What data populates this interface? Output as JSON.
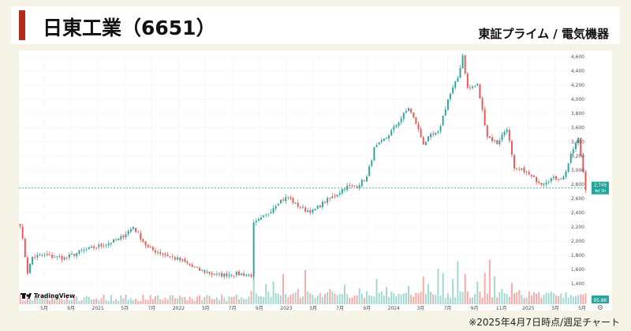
{
  "header": {
    "title": "日東工業（6651）",
    "market": "東証プライム / 電気機器"
  },
  "footnote": "※2025年4月7日時点/週足チャート",
  "chart_data": {
    "type": "candlestick",
    "interval": "weekly",
    "ylim": [
      1400,
      4600
    ],
    "y_ticks": [
      "4,600",
      "4,400",
      "4,200",
      "4,000",
      "3,800",
      "3,600",
      "3,400",
      "3,200",
      "3,000",
      "2,800",
      "2,600",
      "2,400",
      "2,200",
      "2,000",
      "1,800",
      "1,600",
      "1,400"
    ],
    "x_ticks": [
      "5月",
      "9月",
      "2021",
      "5月",
      "7月",
      "2022",
      "3月",
      "7月",
      "9月",
      "2023",
      "3月",
      "7月",
      "9月",
      "2024",
      "3月",
      "7月",
      "9月",
      "11月",
      "2025",
      "3月",
      "5月"
    ],
    "last_price": "2,749",
    "last_price_sub": "4d 3h",
    "volume_label": "95.8K",
    "watermark": "TradingView",
    "colors": {
      "up": "#26a69a",
      "down": "#ef5350",
      "up_volume": "#9fd8cf",
      "down_volume": "#f6a9a6"
    },
    "anchors": [
      [
        0,
        2240
      ],
      [
        3,
        1560
      ],
      [
        5,
        1780
      ],
      [
        10,
        1800
      ],
      [
        18,
        1760
      ],
      [
        25,
        1860
      ],
      [
        33,
        1940
      ],
      [
        40,
        2020
      ],
      [
        46,
        2200
      ],
      [
        52,
        1900
      ],
      [
        58,
        1820
      ],
      [
        66,
        1720
      ],
      [
        72,
        1600
      ],
      [
        80,
        1520
      ],
      [
        88,
        1540
      ],
      [
        94,
        1520
      ],
      [
        95,
        2240
      ],
      [
        100,
        2360
      ],
      [
        105,
        2560
      ],
      [
        109,
        2620
      ],
      [
        112,
        2520
      ],
      [
        116,
        2440
      ],
      [
        119,
        2420
      ],
      [
        124,
        2560
      ],
      [
        128,
        2640
      ],
      [
        132,
        2760
      ],
      [
        137,
        2780
      ],
      [
        141,
        2900
      ],
      [
        144,
        3300
      ],
      [
        149,
        3460
      ],
      [
        153,
        3640
      ],
      [
        158,
        3880
      ],
      [
        161,
        3660
      ],
      [
        164,
        3380
      ],
      [
        167,
        3480
      ],
      [
        170,
        3520
      ],
      [
        174,
        4000
      ],
      [
        178,
        4300
      ],
      [
        180,
        4620
      ],
      [
        182,
        4150
      ],
      [
        186,
        4200
      ],
      [
        190,
        3480
      ],
      [
        194,
        3380
      ],
      [
        198,
        3600
      ],
      [
        201,
        3000
      ],
      [
        205,
        3000
      ],
      [
        208,
        2900
      ],
      [
        212,
        2820
      ],
      [
        216,
        2880
      ],
      [
        221,
        2900
      ],
      [
        225,
        3300
      ],
      [
        227,
        3440
      ],
      [
        229,
        2980
      ],
      [
        230,
        2750
      ]
    ],
    "volume_spikes": {
      "94": 0.26,
      "95": 0.55,
      "100": 0.4,
      "103": 0.45,
      "107": 0.6,
      "113": 0.3,
      "116": 0.68,
      "126": 0.3,
      "132": 0.38,
      "138": 0.32,
      "145": 0.5,
      "149": 0.34,
      "158": 0.36,
      "164": 0.55,
      "166": 0.4,
      "170": 0.7,
      "172": 0.62,
      "176": 0.5,
      "178": 0.85,
      "181": 0.6,
      "186": 0.45,
      "189": 0.62,
      "191": 0.88,
      "193": 0.55,
      "196": 0.3,
      "200": 0.42,
      "203": 0.28,
      "224": 0.18
    }
  }
}
